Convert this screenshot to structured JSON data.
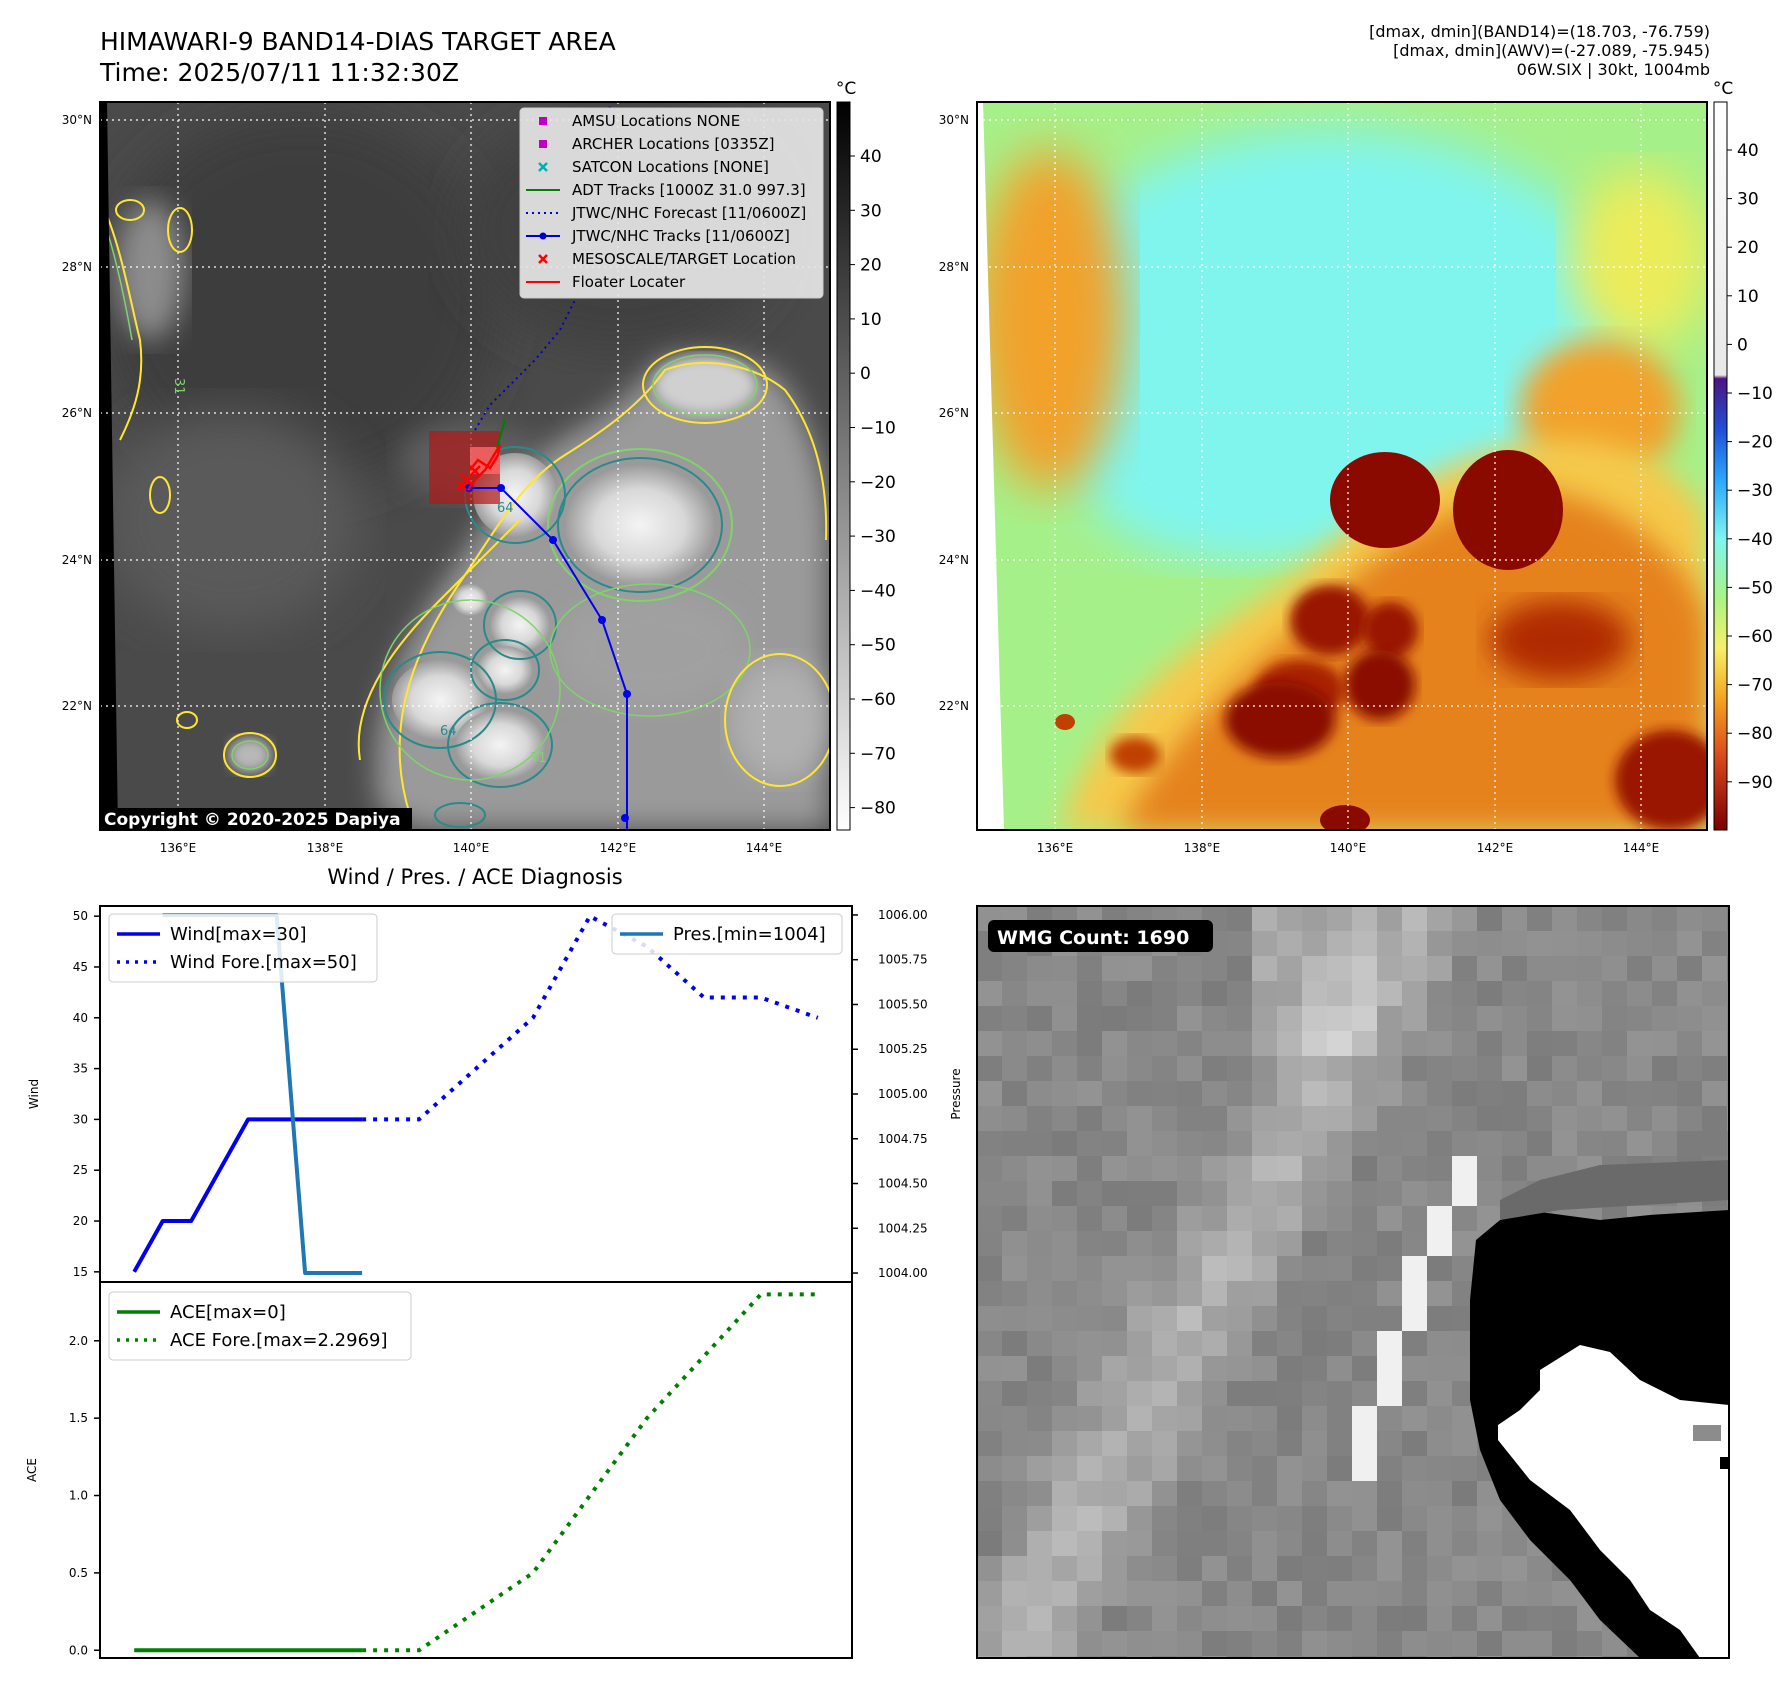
{
  "header": {
    "title_line1": "HIMAWARI-9 BAND14-DIAS TARGET AREA",
    "title_line2": "Time: 2025/07/11 11:32:30Z",
    "info_line1": "[dmax, dmin](BAND14)=(18.703, -76.759)",
    "info_line2": "[dmax, dmin](AWV)=(-27.089, -75.945)",
    "info_line3": "06W.SIX | 30kt, 1004mb"
  },
  "maps": {
    "lat_labels": [
      "30°N",
      "28°N",
      "26°N",
      "24°N",
      "22°N"
    ],
    "lon_labels": [
      "136°E",
      "138°E",
      "140°E",
      "142°E",
      "144°E"
    ],
    "copyright": "Copyright © 2020-2025 Dapiya",
    "contour_labels": [
      "64",
      "64",
      "31",
      "31"
    ],
    "legend": [
      {
        "label": "AMSU Locations NONE",
        "color": "#c000c0",
        "marker": "square"
      },
      {
        "label": "ARCHER Locations [0335Z]",
        "color": "#c000c0",
        "marker": "square"
      },
      {
        "label": "SATCON Locations [NONE]",
        "color": "#00b0b0",
        "marker": "x"
      },
      {
        "label": "ADT Tracks [1000Z 31.0 997.3]",
        "color": "#008000",
        "marker": "line"
      },
      {
        "label": "JTWC/NHC Forecast [11/0600Z]",
        "color": "#0000cc",
        "marker": "dotted"
      },
      {
        "label": "JTWC/NHC Tracks [11/0600Z]",
        "color": "#0000cc",
        "marker": "line-dot"
      },
      {
        "label": "MESOSCALE/TARGET Location",
        "color": "#ff0000",
        "marker": "x"
      },
      {
        "label": "Floater Locater",
        "color": "#ff0000",
        "marker": "line"
      }
    ],
    "colorbar_unit": "°C",
    "colorbar_ir_ticks": [
      "40",
      "30",
      "20",
      "10",
      "0",
      "−10",
      "−20",
      "−30",
      "−40",
      "−50",
      "−60",
      "−70",
      "−80"
    ],
    "colorbar_wv_ticks": [
      "40",
      "30",
      "20",
      "10",
      "0",
      "−10",
      "−20",
      "−30",
      "−40",
      "−50",
      "−60",
      "−70",
      "−80",
      "−90"
    ]
  },
  "wmg": {
    "label": "WMG Count: 1690"
  },
  "chart_data": [
    {
      "type": "line",
      "title": "Wind / Pres. / ACE Diagnosis",
      "ylabel": "Wind",
      "y2label": "Pressure",
      "ylim": [
        14,
        51
      ],
      "y2lim": [
        1003.95,
        1006.05
      ],
      "yticks": [
        "15",
        "20",
        "25",
        "30",
        "35",
        "40",
        "45",
        "50"
      ],
      "y2ticks": [
        "1004.00",
        "1004.25",
        "1004.50",
        "1004.75",
        "1005.00",
        "1005.25",
        "1005.50",
        "1005.75",
        "1006.00"
      ],
      "series": [
        {
          "name": "Wind[max=30]",
          "axis": "left",
          "style": "solid",
          "color": "#0000ee",
          "x": [
            0,
            1,
            2,
            3,
            4,
            5,
            6,
            7,
            8
          ],
          "values": [
            15,
            20,
            20,
            25,
            30,
            30,
            30,
            30,
            30
          ]
        },
        {
          "name": "Wind Fore.[max=50]",
          "axis": "left",
          "style": "dotted",
          "color": "#0000ee",
          "x": [
            8,
            10,
            12,
            14,
            16,
            18,
            20,
            22,
            24
          ],
          "values": [
            30,
            30,
            35,
            40,
            50,
            47,
            42,
            42,
            40
          ]
        },
        {
          "name": "Pres.[min=1004]",
          "axis": "right",
          "style": "solid",
          "color": "#1f77b4",
          "x": [
            1,
            2,
            3,
            4,
            5,
            6,
            7,
            8
          ],
          "values": [
            1006,
            1006,
            1006,
            1006,
            1006,
            1004,
            1004,
            1004
          ]
        }
      ],
      "legend_left": [
        "Wind[max=30]",
        "Wind Fore.[max=50]"
      ],
      "legend_right": [
        "Pres.[min=1004]"
      ]
    },
    {
      "type": "line",
      "ylabel": "ACE",
      "ylim": [
        -0.05,
        2.38
      ],
      "yticks": [
        "0.0",
        "0.5",
        "1.0",
        "1.5",
        "2.0"
      ],
      "series": [
        {
          "name": "ACE[max=0]",
          "style": "solid",
          "color": "#008000",
          "x": [
            0,
            8
          ],
          "values": [
            0,
            0
          ]
        },
        {
          "name": "ACE Fore.[max=2.2969]",
          "style": "dotted",
          "color": "#008000",
          "x": [
            8,
            10,
            12,
            14,
            16,
            18,
            20,
            22,
            24
          ],
          "values": [
            0,
            0,
            0.25,
            0.5,
            1.0,
            1.5,
            1.9,
            2.3,
            2.3
          ]
        }
      ]
    }
  ]
}
